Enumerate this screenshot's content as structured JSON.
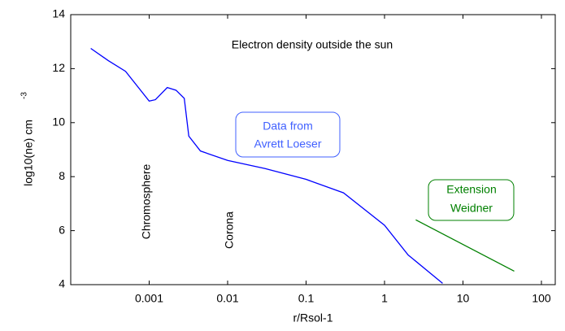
{
  "chart_data": {
    "type": "line",
    "title": "Electron density outside the sun",
    "xlabel": "r/Rsol-1",
    "ylabel": "log10(ne)  cm",
    "ylabel_superscript": "-3",
    "xscale": "log",
    "xlim": [
      0.0001,
      150
    ],
    "xticks": [
      0.001,
      0.01,
      0.1,
      1,
      10,
      100
    ],
    "ylim": [
      4,
      14
    ],
    "yticks": [
      4,
      6,
      8,
      10,
      12,
      14
    ],
    "series": [
      {
        "color": "#0000ff",
        "x": [
          0.00018,
          0.0003,
          0.0005,
          0.001,
          0.0012,
          0.0017,
          0.0022,
          0.0028,
          0.0032,
          0.0045,
          0.01,
          0.03,
          0.1,
          0.3,
          1,
          2,
          5.5
        ],
        "values": [
          12.75,
          12.3,
          11.9,
          10.8,
          10.85,
          11.3,
          11.2,
          10.9,
          9.5,
          8.95,
          8.6,
          8.3,
          7.9,
          7.4,
          6.2,
          5.1,
          4.05
        ]
      },
      {
        "color": "#008000",
        "x": [
          2.5,
          45
        ],
        "values": [
          6.4,
          4.5
        ]
      }
    ],
    "annotations": [
      {
        "lines": [
          "Data from",
          "Avrett Loeser"
        ],
        "color": "#4060ff"
      },
      {
        "lines": [
          "Extension",
          "Weidner"
        ],
        "color": "#008000"
      },
      {
        "lines": [
          "Chromosphere"
        ],
        "color": "#000000"
      },
      {
        "lines": [
          "Corona"
        ],
        "color": "#000000"
      }
    ]
  }
}
